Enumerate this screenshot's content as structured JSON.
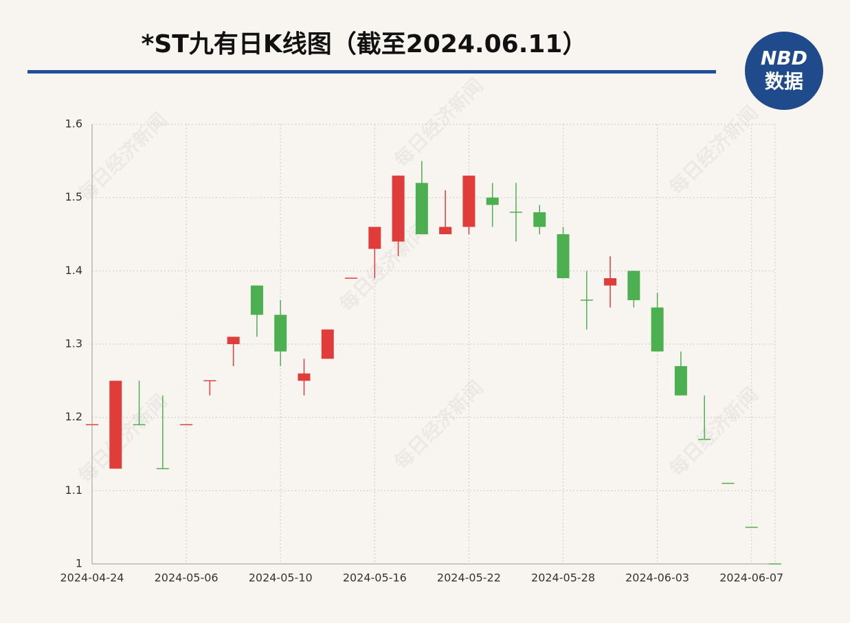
{
  "chart_data": {
    "type": "candlestick",
    "title": "*ST九有日K线图（截至2024.06.11）",
    "logo": {
      "top": "NBD",
      "bottom": "数据"
    },
    "watermark": "每日经济新闻",
    "categories": [
      "2024-04-24",
      null,
      null,
      null,
      "2024-05-06",
      null,
      null,
      null,
      "2024-05-10",
      null,
      null,
      null,
      "2024-05-16",
      null,
      null,
      null,
      "2024-05-22",
      null,
      null,
      null,
      "2024-05-28",
      null,
      null,
      null,
      "2024-06-03",
      null,
      null,
      null,
      "2024-06-07",
      null
    ],
    "open": [
      1.19,
      1.13,
      1.19,
      1.13,
      1.19,
      1.25,
      1.3,
      1.38,
      1.34,
      1.25,
      1.28,
      1.39,
      1.43,
      1.44,
      1.52,
      1.45,
      1.46,
      1.5,
      1.48,
      1.48,
      1.45,
      1.36,
      1.38,
      1.4,
      1.35,
      1.27,
      1.17,
      1.11,
      1.05,
      1.0
    ],
    "high": [
      1.19,
      1.25,
      1.25,
      1.23,
      1.19,
      1.25,
      1.31,
      1.38,
      1.36,
      1.28,
      1.32,
      1.39,
      1.46,
      1.53,
      1.55,
      1.51,
      1.53,
      1.52,
      1.52,
      1.49,
      1.46,
      1.4,
      1.42,
      1.4,
      1.37,
      1.29,
      1.23,
      1.11,
      1.05,
      1.0
    ],
    "low": [
      1.19,
      1.13,
      1.19,
      1.13,
      1.19,
      1.23,
      1.27,
      1.31,
      1.27,
      1.23,
      1.28,
      1.39,
      1.39,
      1.42,
      1.45,
      1.45,
      1.45,
      1.46,
      1.44,
      1.45,
      1.39,
      1.32,
      1.35,
      1.35,
      1.29,
      1.23,
      1.17,
      1.11,
      1.05,
      1.0
    ],
    "close": [
      1.19,
      1.25,
      1.19,
      1.13,
      1.19,
      1.25,
      1.31,
      1.34,
      1.29,
      1.26,
      1.32,
      1.39,
      1.46,
      1.53,
      1.45,
      1.46,
      1.53,
      1.49,
      1.48,
      1.46,
      1.39,
      1.36,
      1.39,
      1.36,
      1.29,
      1.23,
      1.17,
      1.11,
      1.05,
      1.0
    ],
    "up_color": "#e03c3a",
    "down_color": "#4caf50",
    "ylim": [
      1,
      1.6
    ],
    "yticks": [
      1,
      1.1,
      1.2,
      1.3,
      1.4,
      1.5,
      1.6
    ],
    "grid": true
  }
}
